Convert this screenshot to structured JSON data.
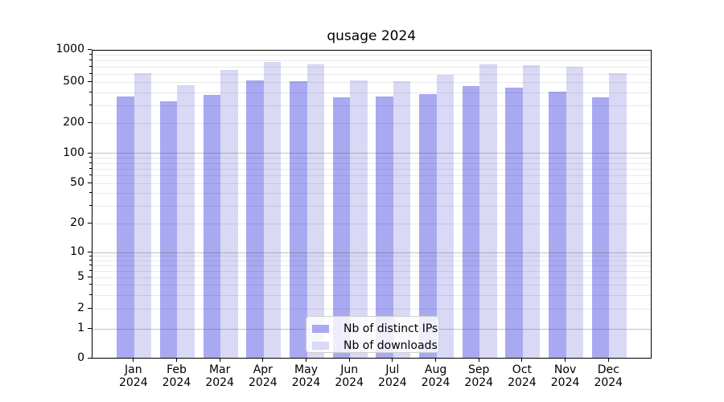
{
  "title": "qusage 2024",
  "chart_data": {
    "type": "bar",
    "title": "qusage 2024",
    "categories": [
      "Jan 2024",
      "Feb 2024",
      "Mar 2024",
      "Apr 2024",
      "May 2024",
      "Jun 2024",
      "Jul 2024",
      "Aug 2024",
      "Sep 2024",
      "Oct 2024",
      "Nov 2024",
      "Dec 2024"
    ],
    "months": [
      "Jan",
      "Feb",
      "Mar",
      "Apr",
      "May",
      "Jun",
      "Jul",
      "Aug",
      "Sep",
      "Oct",
      "Nov",
      "Dec"
    ],
    "year": "2024",
    "series": [
      {
        "name": "Nb of distinct IPs",
        "color": "#a9a9f1",
        "values": [
          355,
          318,
          368,
          505,
          495,
          345,
          352,
          372,
          445,
          428,
          395,
          345
        ]
      },
      {
        "name": "Nb of downloads",
        "color": "#d9d9f6",
        "values": [
          590,
          452,
          632,
          748,
          712,
          510,
          495,
          570,
          718,
          700,
          675,
          595
        ]
      }
    ],
    "xlabel": "",
    "ylabel": "",
    "yscale": "symlog",
    "ylim": [
      0,
      1000
    ],
    "y_tick_labels": [
      "1000",
      "500",
      "200",
      "100",
      "50",
      "20",
      "10",
      "5",
      "2",
      "1",
      "0"
    ],
    "y_ticks": [
      1000,
      500,
      200,
      100,
      50,
      20,
      10,
      5,
      2,
      1,
      0
    ],
    "grid": "horizontal, major and minor",
    "legend_position": "lower center"
  },
  "colors": {
    "background": "#ffffff",
    "spine": "#000000",
    "major_grid": "#c2c2c2",
    "minor_grid": "#e9e9e9",
    "text": "#000000"
  }
}
